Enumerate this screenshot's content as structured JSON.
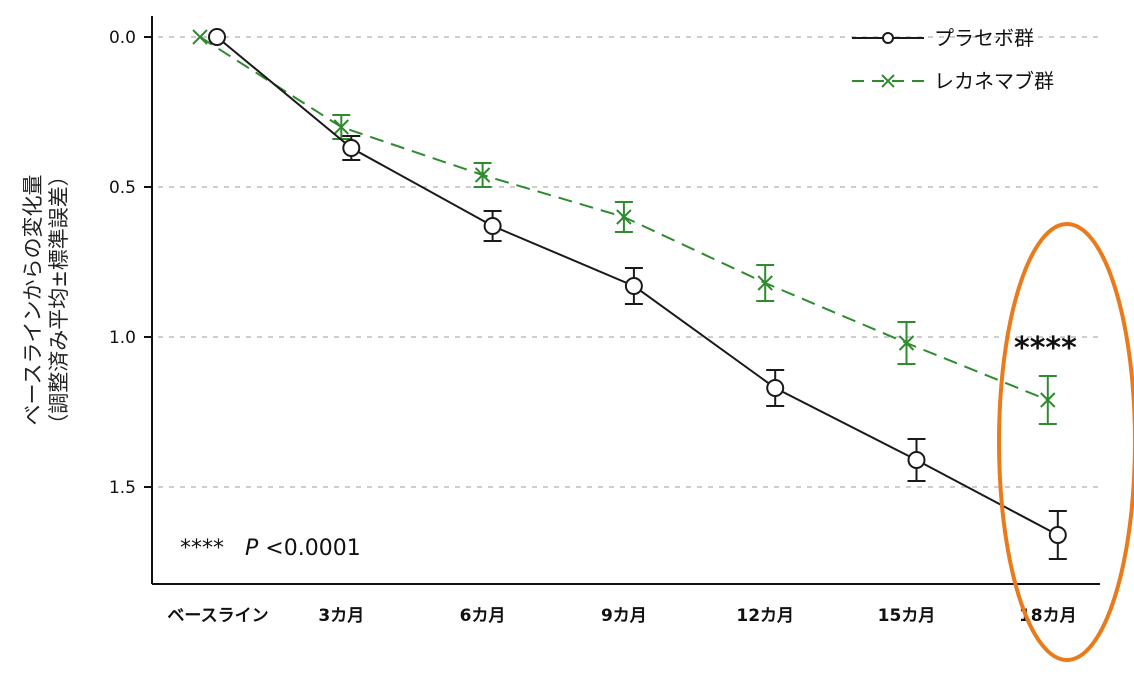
{
  "chart_data": {
    "type": "line",
    "title": "",
    "ylabel_line1": "ベースラインからの変化量",
    "ylabel_line2": "（調整済み平均±標準誤差）",
    "xlabel": "",
    "categories": [
      "ベースライン",
      "3カ月",
      "6カ月",
      "9カ月",
      "12カ月",
      "15カ月",
      "18カ月"
    ],
    "yticks": [
      "0.0",
      "0.5",
      "1.0",
      "1.5"
    ],
    "ylim": [
      0,
      1.8
    ],
    "y_inverted": true,
    "grid": "horizontal-dashed",
    "legend_position": "top-right",
    "series": [
      {
        "name": "プラセボ群",
        "color": "#1a1a1a",
        "line": "solid",
        "marker": "circle",
        "values": [
          0.0,
          0.37,
          0.63,
          0.83,
          1.17,
          1.41,
          1.66
        ],
        "errors": [
          0.0,
          0.04,
          0.05,
          0.06,
          0.06,
          0.07,
          0.08
        ]
      },
      {
        "name": "レカネマブ群",
        "color": "#2e8b2e",
        "line": "dashed",
        "marker": "x",
        "values": [
          0.0,
          0.3,
          0.46,
          0.6,
          0.82,
          1.02,
          1.21
        ],
        "errors": [
          0.0,
          0.04,
          0.04,
          0.05,
          0.06,
          0.07,
          0.08
        ]
      }
    ],
    "annotations": {
      "significance_marker": "****",
      "footnote_stars": "****",
      "footnote_p": "P",
      "footnote_threshold": "<0.0001"
    },
    "highlight": {
      "shape": "ellipse",
      "color": "#ea7a1a",
      "category": "18カ月"
    }
  }
}
